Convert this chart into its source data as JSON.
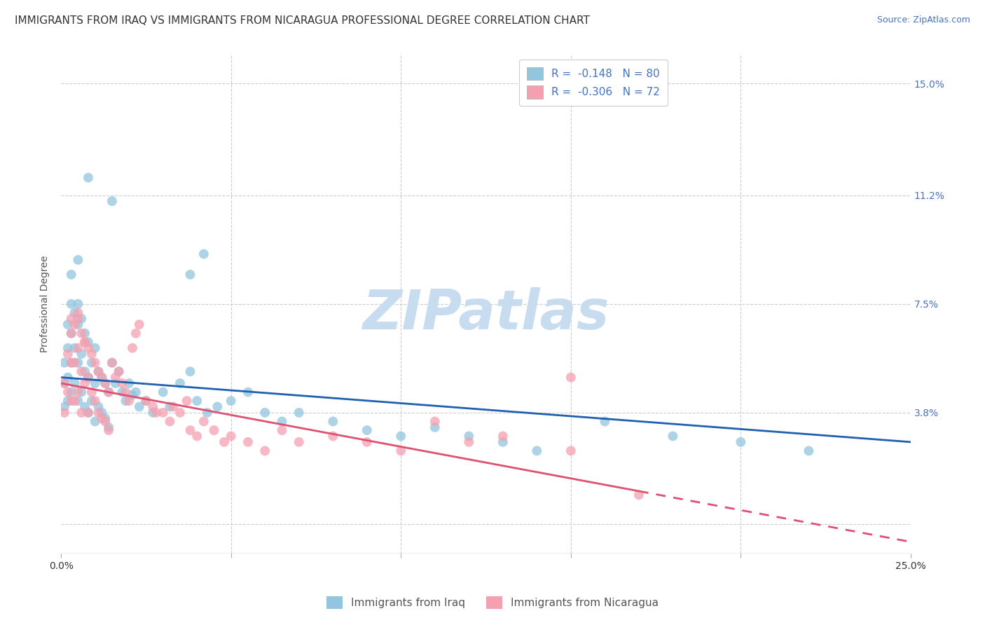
{
  "title": "IMMIGRANTS FROM IRAQ VS IMMIGRANTS FROM NICARAGUA PROFESSIONAL DEGREE CORRELATION CHART",
  "source": "Source: ZipAtlas.com",
  "ylabel": "Professional Degree",
  "x_ticks": [
    0.0,
    0.05,
    0.1,
    0.15,
    0.2,
    0.25
  ],
  "x_tick_labels": [
    "0.0%",
    "",
    "",
    "",
    "",
    "25.0%"
  ],
  "y_ticks": [
    0.0,
    0.038,
    0.075,
    0.112,
    0.15
  ],
  "y_tick_labels_right": [
    "",
    "3.8%",
    "7.5%",
    "11.2%",
    "15.0%"
  ],
  "xlim": [
    0.0,
    0.25
  ],
  "ylim": [
    -0.01,
    0.16
  ],
  "iraq_color": "#92C5DE",
  "nicaragua_color": "#F4A0B0",
  "iraq_line_color": "#2060B0",
  "nicaragua_line_color": "#E05070",
  "watermark_text": "ZIPatlas",
  "legend_iraq_label": "R =  -0.148   N = 80",
  "legend_nicaragua_label": "R =  -0.306   N = 72",
  "bottom_legend_iraq": "Immigrants from Iraq",
  "bottom_legend_nicaragua": "Immigrants from Nicaragua",
  "iraq_scatter_x": [
    0.001,
    0.001,
    0.001,
    0.002,
    0.002,
    0.002,
    0.002,
    0.003,
    0.003,
    0.003,
    0.003,
    0.004,
    0.004,
    0.004,
    0.005,
    0.005,
    0.005,
    0.005,
    0.006,
    0.006,
    0.006,
    0.007,
    0.007,
    0.007,
    0.008,
    0.008,
    0.008,
    0.009,
    0.009,
    0.01,
    0.01,
    0.01,
    0.011,
    0.011,
    0.012,
    0.012,
    0.013,
    0.013,
    0.014,
    0.014,
    0.015,
    0.016,
    0.017,
    0.018,
    0.019,
    0.02,
    0.021,
    0.022,
    0.023,
    0.025,
    0.027,
    0.03,
    0.032,
    0.035,
    0.038,
    0.04,
    0.043,
    0.046,
    0.05,
    0.055,
    0.06,
    0.065,
    0.07,
    0.08,
    0.09,
    0.1,
    0.11,
    0.12,
    0.13,
    0.14,
    0.16,
    0.18,
    0.2,
    0.038,
    0.042,
    0.015,
    0.008,
    0.005,
    0.003,
    0.22
  ],
  "iraq_scatter_y": [
    0.055,
    0.048,
    0.04,
    0.068,
    0.06,
    0.05,
    0.042,
    0.075,
    0.065,
    0.055,
    0.045,
    0.072,
    0.06,
    0.048,
    0.075,
    0.068,
    0.055,
    0.042,
    0.07,
    0.058,
    0.045,
    0.065,
    0.052,
    0.04,
    0.062,
    0.05,
    0.038,
    0.055,
    0.042,
    0.06,
    0.048,
    0.035,
    0.052,
    0.04,
    0.05,
    0.038,
    0.048,
    0.036,
    0.045,
    0.033,
    0.055,
    0.048,
    0.052,
    0.045,
    0.042,
    0.048,
    0.044,
    0.045,
    0.04,
    0.042,
    0.038,
    0.045,
    0.04,
    0.048,
    0.052,
    0.042,
    0.038,
    0.04,
    0.042,
    0.045,
    0.038,
    0.035,
    0.038,
    0.035,
    0.032,
    0.03,
    0.033,
    0.03,
    0.028,
    0.025,
    0.035,
    0.03,
    0.028,
    0.085,
    0.092,
    0.11,
    0.118,
    0.09,
    0.085,
    0.025
  ],
  "nicaragua_scatter_x": [
    0.001,
    0.001,
    0.002,
    0.002,
    0.003,
    0.003,
    0.003,
    0.004,
    0.004,
    0.004,
    0.005,
    0.005,
    0.005,
    0.006,
    0.006,
    0.006,
    0.007,
    0.007,
    0.008,
    0.008,
    0.008,
    0.009,
    0.009,
    0.01,
    0.01,
    0.011,
    0.011,
    0.012,
    0.012,
    0.013,
    0.013,
    0.014,
    0.014,
    0.015,
    0.016,
    0.017,
    0.018,
    0.019,
    0.02,
    0.021,
    0.022,
    0.023,
    0.025,
    0.027,
    0.028,
    0.03,
    0.032,
    0.033,
    0.035,
    0.037,
    0.038,
    0.04,
    0.042,
    0.045,
    0.048,
    0.05,
    0.055,
    0.06,
    0.065,
    0.07,
    0.08,
    0.09,
    0.1,
    0.11,
    0.12,
    0.13,
    0.15,
    0.17,
    0.003,
    0.005,
    0.007,
    0.15
  ],
  "nicaragua_scatter_y": [
    0.048,
    0.038,
    0.058,
    0.045,
    0.065,
    0.055,
    0.042,
    0.068,
    0.055,
    0.042,
    0.072,
    0.06,
    0.045,
    0.065,
    0.052,
    0.038,
    0.062,
    0.048,
    0.06,
    0.05,
    0.038,
    0.058,
    0.045,
    0.055,
    0.042,
    0.052,
    0.038,
    0.05,
    0.036,
    0.048,
    0.035,
    0.045,
    0.032,
    0.055,
    0.05,
    0.052,
    0.048,
    0.045,
    0.042,
    0.06,
    0.065,
    0.068,
    0.042,
    0.04,
    0.038,
    0.038,
    0.035,
    0.04,
    0.038,
    0.042,
    0.032,
    0.03,
    0.035,
    0.032,
    0.028,
    0.03,
    0.028,
    0.025,
    0.032,
    0.028,
    0.03,
    0.028,
    0.025,
    0.035,
    0.028,
    0.03,
    0.025,
    0.01,
    0.07,
    0.07,
    0.062,
    0.05
  ],
  "grid_color": "#CCCCCC",
  "background_color": "#FFFFFF",
  "title_fontsize": 11,
  "axis_label_fontsize": 10,
  "tick_fontsize": 10,
  "legend_fontsize": 11,
  "watermark_color": "#C8DCF0",
  "watermark_fontsize": 56
}
